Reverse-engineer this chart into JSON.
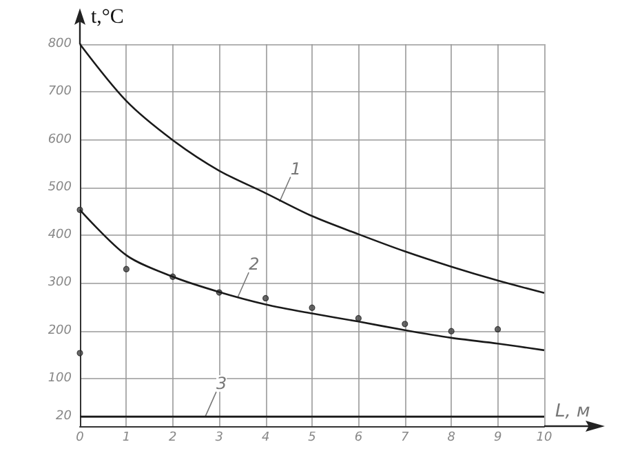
{
  "chart_data": {
    "type": "line",
    "xlabel": "L, м",
    "ylabel": "t,°C",
    "xlim": [
      0,
      10
    ],
    "xticks": [
      0,
      1,
      2,
      3,
      4,
      5,
      6,
      7,
      8,
      9,
      10
    ],
    "ylim": [
      0,
      800
    ],
    "yticks": [
      20,
      100,
      200,
      300,
      400,
      500,
      600,
      700,
      800
    ],
    "grid": true,
    "marker": "none",
    "line_style": "solid",
    "series": [
      {
        "color": "#1a1a1a",
        "x": [
          0,
          1,
          2,
          3,
          4,
          5,
          6,
          7,
          8,
          9,
          10
        ],
        "values": [
          800,
          681,
          599,
          535,
          488,
          440,
          402,
          366,
          334,
          305,
          279
        ]
      },
      {
        "color": "#1a1a1a",
        "x": [
          0,
          1,
          2,
          3,
          4,
          5,
          6,
          7,
          8,
          9,
          10
        ],
        "values": [
          453,
          358,
          313,
          281,
          255,
          236,
          219,
          201,
          185,
          173,
          159
        ]
      },
      {
        "color": "#1a1a1a",
        "x": [
          0,
          10
        ],
        "values": [
          20,
          20
        ]
      },
      {
        "type": "scatter",
        "marker": "circle",
        "color": "#444444",
        "x": [
          0,
          0,
          1,
          2,
          3,
          4,
          5,
          6,
          7,
          8,
          9
        ],
        "values": [
          153,
          453,
          329,
          313,
          280,
          268,
          248,
          226,
          214,
          199,
          203
        ]
      }
    ],
    "annotations": [
      {
        "text": "1",
        "x": 4.3,
        "y": 470
      },
      {
        "text": "2",
        "x": 3.4,
        "y": 270
      },
      {
        "text": "3",
        "x": 2.7,
        "y": 20
      }
    ]
  }
}
